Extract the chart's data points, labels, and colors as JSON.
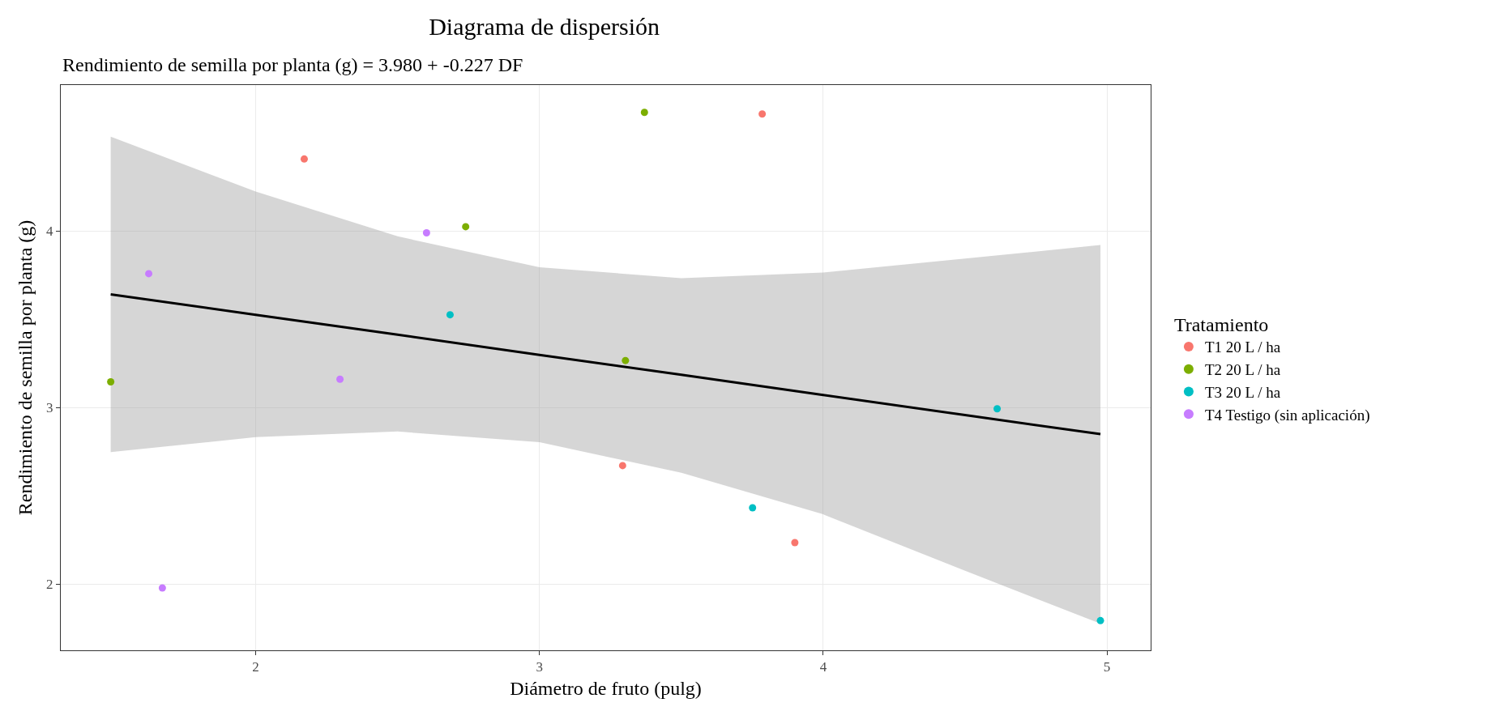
{
  "chart_data": {
    "type": "scatter",
    "title": "Diagrama de dispersión",
    "subtitle": "Rendimiento de semilla por planta (g) = 3.980 + -0.227 DF",
    "xlabel": "Diámetro de fruto (pulg)",
    "ylabel": "Rendimiento de semilla por planta (g)",
    "legend_title": "Tratamiento",
    "xlim": [
      1.313,
      5.154
    ],
    "xticks": [
      2,
      3,
      4,
      5
    ],
    "ylim": [
      1.626,
      4.827
    ],
    "yticks": [
      2,
      3,
      4
    ],
    "grid": true,
    "legend": "right",
    "marker": "circle",
    "series": [
      {
        "type": "line",
        "color": "#000000",
        "line_style": "solid",
        "marker": "none",
        "x": [
          1.489,
          2,
          2.5,
          3,
          3.5,
          4,
          4.5,
          4.977
        ],
        "values": [
          3.642,
          3.526,
          3.413,
          3.299,
          3.186,
          3.072,
          2.958,
          2.85
        ],
        "lower": [
          2.748,
          2.833,
          2.865,
          2.805,
          2.631,
          2.396,
          2.076,
          1.777
        ],
        "upper": [
          4.535,
          4.224,
          3.97,
          3.795,
          3.733,
          3.765,
          3.844,
          3.921
        ]
      },
      {
        "name": "T1 20 L / ha",
        "color": "#f8766d",
        "x": [
          2.171,
          3.785,
          3.293,
          3.9
        ],
        "values": [
          4.408,
          4.663,
          2.672,
          2.236
        ]
      },
      {
        "name": "T2 20 L / ha",
        "color": "#7cae00",
        "x": [
          3.37,
          2.74,
          3.303,
          1.489
        ],
        "values": [
          4.672,
          4.025,
          3.267,
          3.146
        ]
      },
      {
        "name": "T3 20 L / ha",
        "color": "#00bfc4",
        "x": [
          2.685,
          4.613,
          3.751,
          4.977
        ],
        "values": [
          3.526,
          2.994,
          2.433,
          1.794
        ]
      },
      {
        "name": "T4 Testigo (sin aplicación)",
        "color": "#c77cff",
        "x": [
          2.602,
          1.623,
          2.297,
          1.671
        ],
        "values": [
          3.99,
          3.759,
          3.161,
          1.979
        ]
      }
    ]
  }
}
